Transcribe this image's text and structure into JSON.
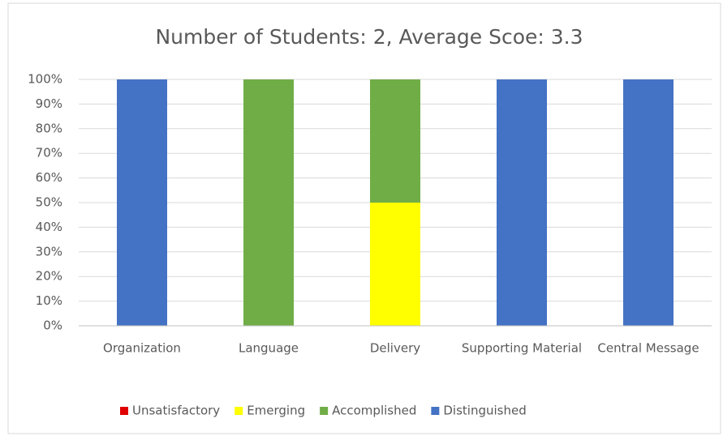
{
  "chart_data": {
    "type": "stacked_bar",
    "title": "Number of Students: 2, Average Scoe: 3.3",
    "categories": [
      "Organization",
      "Language",
      "Delivery",
      "Supporting Material",
      "Central Message"
    ],
    "series": [
      {
        "name": "Unsatisfactory",
        "color": "#e00000",
        "values": [
          0,
          0,
          0,
          0,
          0
        ]
      },
      {
        "name": "Emerging",
        "color": "#ffff00",
        "values": [
          0,
          0,
          50,
          0,
          0
        ]
      },
      {
        "name": "Accomplished",
        "color": "#70ad47",
        "values": [
          0,
          100,
          50,
          0,
          0
        ]
      },
      {
        "name": "Distinguished",
        "color": "#4472c4",
        "values": [
          100,
          0,
          0,
          100,
          100
        ]
      }
    ],
    "ylim": [
      0,
      100
    ],
    "yticks": [
      {
        "value": 0,
        "label": "0%"
      },
      {
        "value": 10,
        "label": "10%"
      },
      {
        "value": 20,
        "label": "20%"
      },
      {
        "value": 30,
        "label": "30%"
      },
      {
        "value": 40,
        "label": "40%"
      },
      {
        "value": 50,
        "label": "50%"
      },
      {
        "value": 60,
        "label": "60%"
      },
      {
        "value": 70,
        "label": "70%"
      },
      {
        "value": 80,
        "label": "80%"
      },
      {
        "value": 90,
        "label": "90%"
      },
      {
        "value": 100,
        "label": "100%"
      }
    ],
    "grid": true,
    "legend": "bottom"
  }
}
